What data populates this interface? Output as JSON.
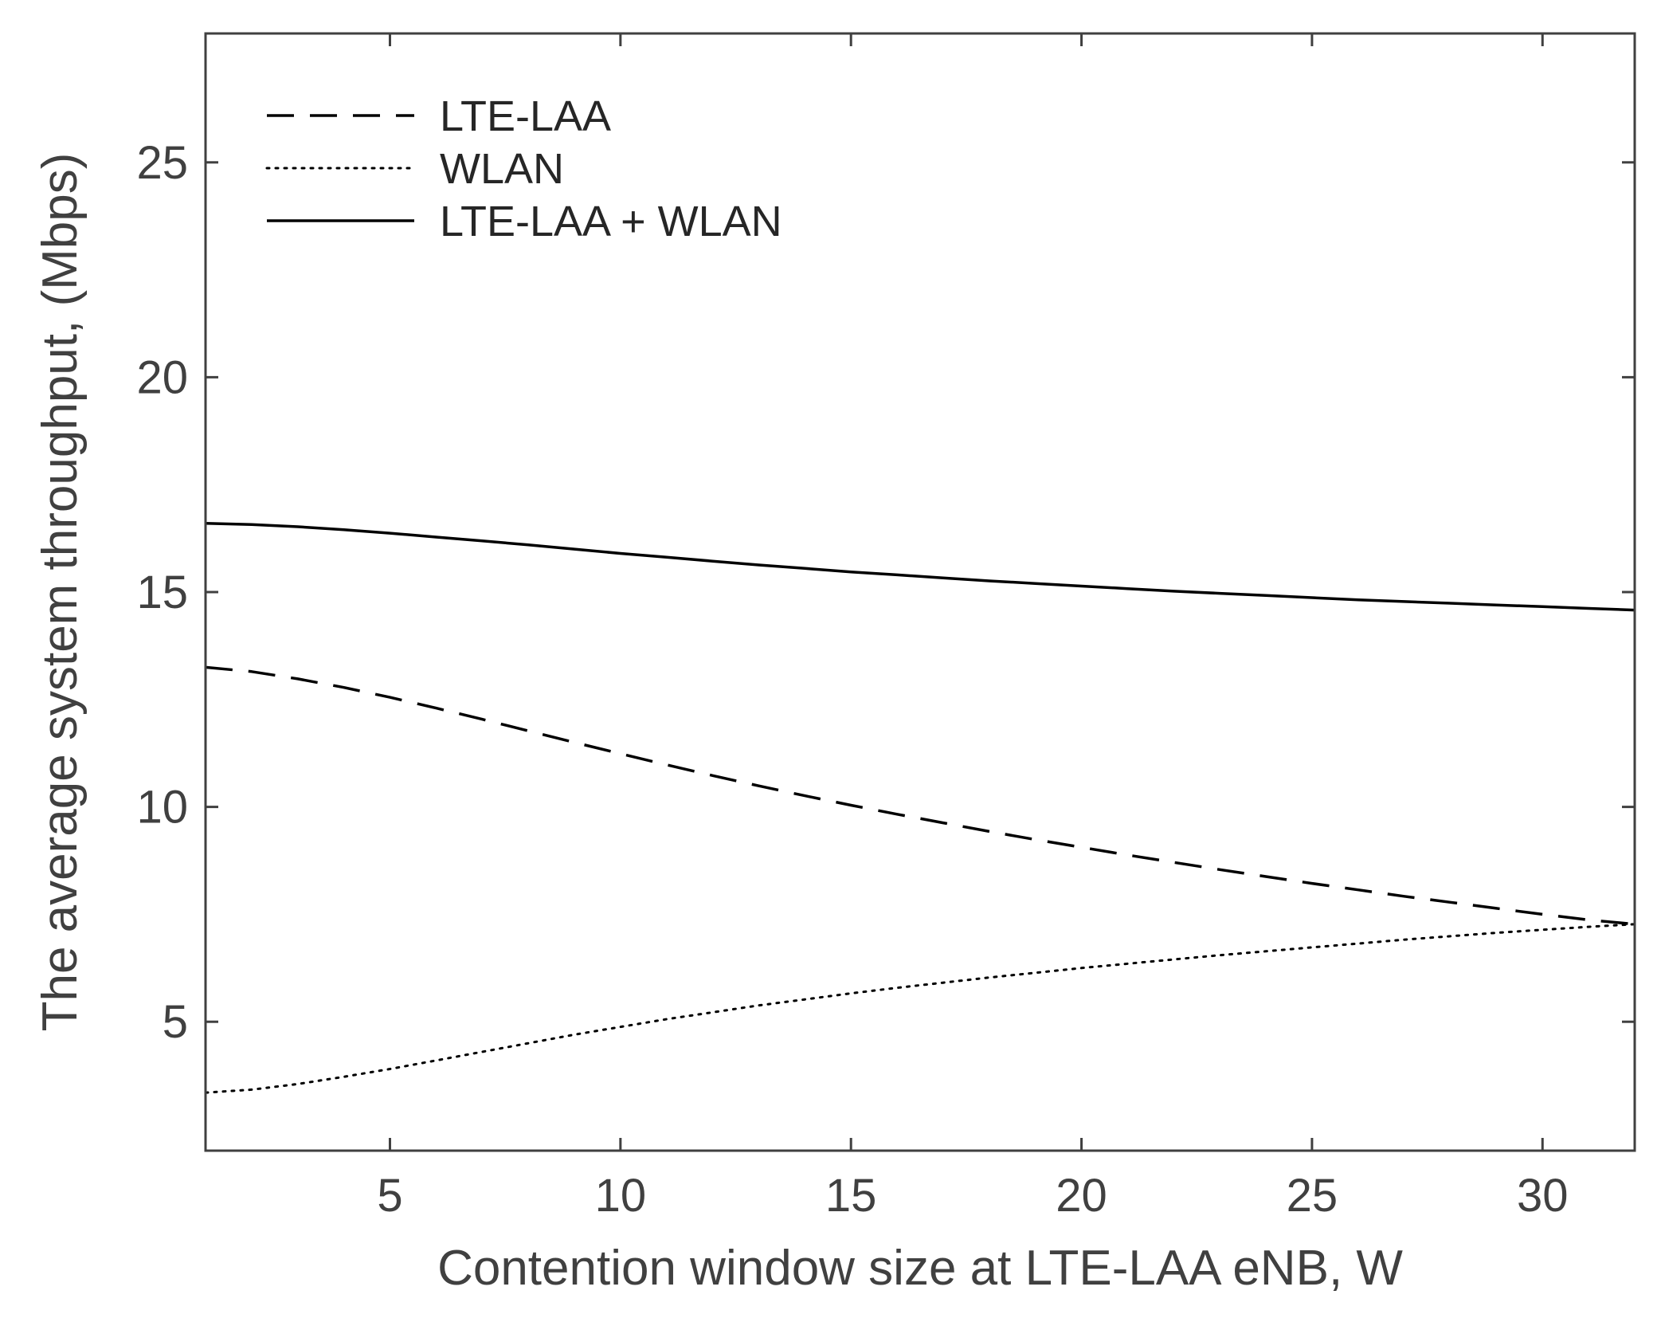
{
  "chart_data": {
    "type": "line",
    "title": "",
    "xlabel": "Contention window size at LTE-LAA eNB, W",
    "ylabel": "The average system throughput, (Mbps)",
    "xlim": [
      1,
      32
    ],
    "ylim": [
      2,
      28
    ],
    "xticks": [
      5,
      10,
      15,
      20,
      25,
      30
    ],
    "yticks": [
      5,
      10,
      15,
      20,
      25
    ],
    "grid": false,
    "legend_position": "top-left",
    "x": [
      1,
      2,
      3,
      4,
      5,
      6,
      7,
      8,
      9,
      10,
      11,
      12,
      13,
      14,
      15,
      16,
      17,
      18,
      19,
      20,
      21,
      22,
      23,
      24,
      25,
      26,
      27,
      28,
      29,
      30,
      31,
      32
    ],
    "series": [
      {
        "name": "LTE-LAA",
        "style": "dashed",
        "color": "#000000",
        "values": [
          13.25,
          13.15,
          12.98,
          12.78,
          12.55,
          12.3,
          12.04,
          11.77,
          11.5,
          11.24,
          10.98,
          10.73,
          10.49,
          10.26,
          10.04,
          9.83,
          9.63,
          9.43,
          9.24,
          9.06,
          8.88,
          8.71,
          8.54,
          8.38,
          8.22,
          8.07,
          7.92,
          7.78,
          7.64,
          7.5,
          7.37,
          7.27
        ]
      },
      {
        "name": "WLAN",
        "style": "dotted",
        "color": "#000000",
        "values": [
          3.35,
          3.42,
          3.55,
          3.72,
          3.9,
          4.1,
          4.3,
          4.5,
          4.7,
          4.88,
          5.06,
          5.22,
          5.38,
          5.52,
          5.66,
          5.79,
          5.91,
          6.03,
          6.14,
          6.25,
          6.35,
          6.45,
          6.55,
          6.64,
          6.73,
          6.82,
          6.91,
          6.99,
          7.07,
          7.14,
          7.21,
          7.27
        ]
      },
      {
        "name": "LTE-LAA + WLAN",
        "style": "solid",
        "color": "#000000",
        "values": [
          16.6,
          16.57,
          16.52,
          16.45,
          16.37,
          16.28,
          16.19,
          16.1,
          16.0,
          15.9,
          15.81,
          15.72,
          15.63,
          15.55,
          15.47,
          15.4,
          15.33,
          15.26,
          15.2,
          15.14,
          15.08,
          15.02,
          14.97,
          14.92,
          14.87,
          14.82,
          14.78,
          14.74,
          14.7,
          14.66,
          14.62,
          14.58
        ]
      }
    ]
  }
}
